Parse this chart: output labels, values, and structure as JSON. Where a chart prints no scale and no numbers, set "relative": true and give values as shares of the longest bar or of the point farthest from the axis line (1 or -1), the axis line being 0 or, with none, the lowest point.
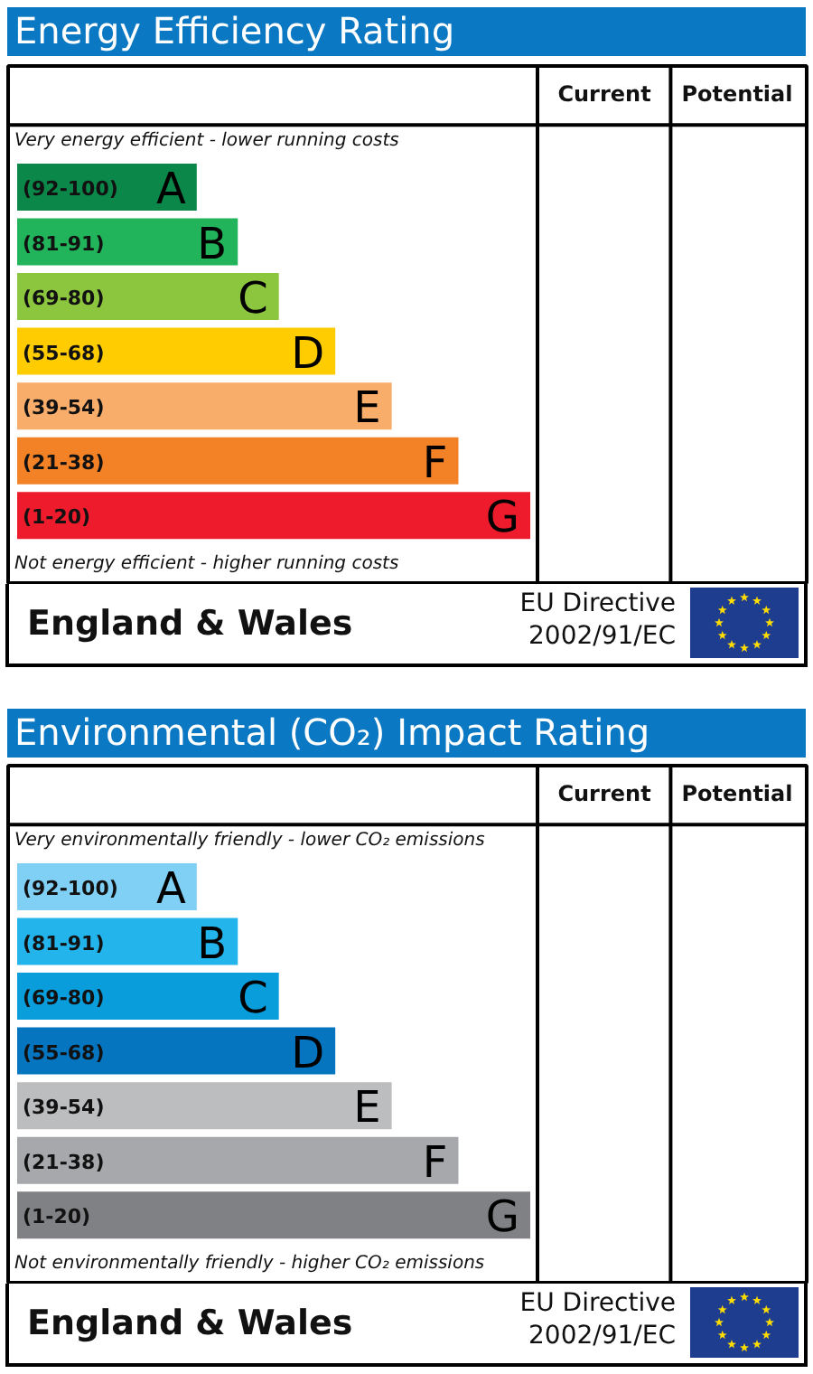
{
  "chart_data": [
    {
      "type": "bar",
      "title": "Energy Efficiency Rating",
      "orientation": "horizontal",
      "relative": true,
      "categories": [
        "(92-100)",
        "(81-91)",
        "(69-80)",
        "(55-68)",
        "(39-54)",
        "(21-38)",
        "(1-20)"
      ],
      "values": [
        0.35,
        0.43,
        0.51,
        0.62,
        0.73,
        0.86,
        1
      ],
      "colors": [
        "#0c874a",
        "#22b45a",
        "#8cc63e",
        "#ffcc02",
        "#f8ad6a",
        "#f38126",
        "#ed1b2b"
      ],
      "annotations": [
        "Current",
        "Potential",
        "Very energy efficient - lower running costs",
        {
          "text": "A",
          "x": 0.35,
          "y": "(92-100)"
        },
        {
          "text": "B",
          "x": 0.43,
          "y": "(81-91)"
        },
        {
          "text": "C",
          "x": 0.51,
          "y": "(69-80)"
        },
        {
          "text": "D",
          "x": 0.62,
          "y": "(55-68)"
        },
        {
          "text": "E",
          "x": 0.73,
          "y": "(39-54)"
        },
        {
          "text": "F",
          "x": 0.86,
          "y": "(21-38)"
        },
        {
          "text": "G",
          "x": 1,
          "y": "(1-20)"
        },
        "Not energy efficient - higher running costs",
        "England & Wales",
        "EU Directive",
        "2002/91/EC"
      ]
    },
    {
      "type": "bar",
      "title": "Environmental (CO₂) Impact Rating",
      "orientation": "horizontal",
      "relative": true,
      "categories": [
        "(92-100)",
        "(81-91)",
        "(69-80)",
        "(55-68)",
        "(39-54)",
        "(21-38)",
        "(1-20)"
      ],
      "values": [
        0.35,
        0.43,
        0.51,
        0.62,
        0.73,
        0.86,
        1
      ],
      "colors": [
        "#7fd0f4",
        "#22b4ea",
        "#0a9ddc",
        "#0575c0",
        "#bbbdbf",
        "#a6a8ab",
        "#808184"
      ],
      "annotations": [
        "Current",
        "Potential",
        "Very environmentally friendly - lower CO₂ emissions",
        {
          "text": "A",
          "x": 0.35,
          "y": "(92-100)"
        },
        {
          "text": "B",
          "x": 0.43,
          "y": "(81-91)"
        },
        {
          "text": "C",
          "x": 0.51,
          "y": "(69-80)"
        },
        {
          "text": "D",
          "x": 0.62,
          "y": "(55-68)"
        },
        {
          "text": "E",
          "x": 0.73,
          "y": "(39-54)"
        },
        {
          "text": "F",
          "x": 0.86,
          "y": "(21-38)"
        },
        {
          "text": "G",
          "x": 1,
          "y": "(1-20)"
        },
        "Not environmentally friendly - higher CO₂ emissions",
        "England & Wales",
        "EU Directive",
        "2002/91/EC"
      ]
    }
  ]
}
